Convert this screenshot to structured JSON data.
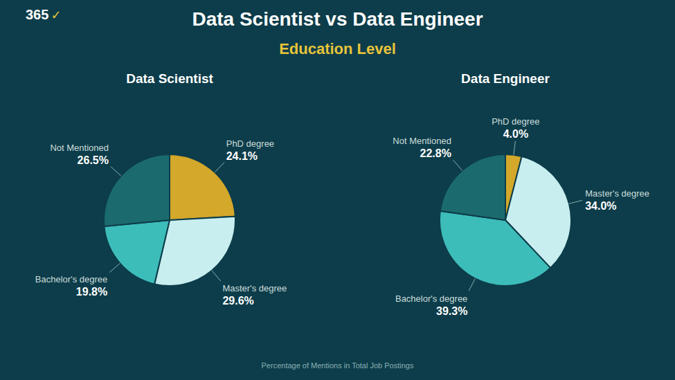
{
  "title": "Data Scientist vs Data Engineer",
  "subtitle": "Education Level",
  "annotations": [
    "365",
    "✓",
    "Percentage of Mentions in Total Job Postings"
  ],
  "chart_data": [
    {
      "type": "pie",
      "title": "Data Scientist",
      "categories": [
        "PhD degree",
        "Master's degree",
        "Bachelor's degree",
        "Not Mentioned"
      ],
      "values": [
        24.1,
        29.6,
        19.8,
        26.5
      ],
      "value_labels": [
        "24.1%",
        "29.6%",
        "19.8%",
        "26.5%"
      ],
      "data_labels": true,
      "colors": [
        "#d4a82a",
        "#c8eef0",
        "#3dbdba",
        "#1b6b6e"
      ]
    },
    {
      "type": "pie",
      "title": "Data Engineer",
      "categories": [
        "PhD degree",
        "Master's degree",
        "Bachelor's degree",
        "Not Mentioned"
      ],
      "values": [
        4.0,
        34.0,
        39.3,
        22.8
      ],
      "value_labels": [
        "4.0%",
        "34.0%",
        "39.3%",
        "22.8%"
      ],
      "data_labels": true,
      "colors": [
        "#d4a82a",
        "#c8eef0",
        "#3dbdba",
        "#1b6b6e"
      ]
    }
  ]
}
